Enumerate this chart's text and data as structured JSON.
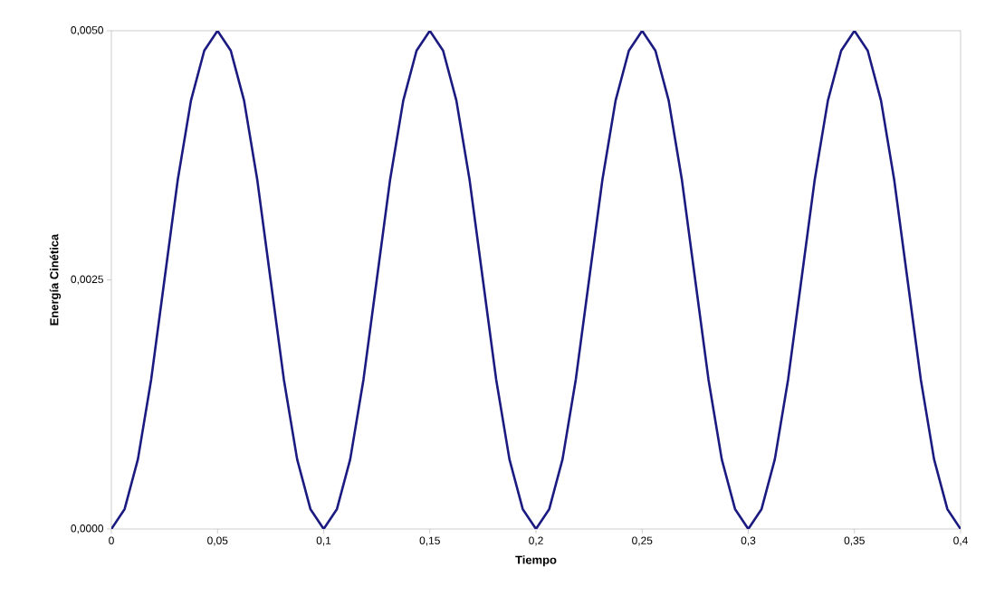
{
  "chart_data": {
    "type": "line",
    "xlabel": "Tiempo",
    "ylabel": "Energía Cinética",
    "x": [
      0,
      0.00625,
      0.0125,
      0.01875,
      0.025,
      0.03125,
      0.0375,
      0.04375,
      0.05,
      0.05625,
      0.0625,
      0.06875,
      0.075,
      0.08125,
      0.0875,
      0.09375,
      0.1,
      0.10625,
      0.1125,
      0.11875,
      0.125,
      0.13125,
      0.1375,
      0.14375,
      0.15,
      0.15625,
      0.1625,
      0.16875,
      0.175,
      0.18125,
      0.1875,
      0.19375,
      0.2,
      0.20625,
      0.2125,
      0.21875,
      0.225,
      0.23125,
      0.2375,
      0.24375,
      0.25,
      0.25625,
      0.2625,
      0.26875,
      0.275,
      0.28125,
      0.2875,
      0.29375,
      0.3,
      0.30625,
      0.3125,
      0.31875,
      0.325,
      0.33125,
      0.3375,
      0.34375,
      0.35,
      0.35625,
      0.3625,
      0.36875,
      0.375,
      0.38125,
      0.3875,
      0.39375,
      0.4
    ],
    "series": [
      {
        "color": "#1a1a80",
        "values": [
          0,
          0.0002,
          0.0007,
          0.0015,
          0.0025,
          0.0035,
          0.0043,
          0.0048,
          0.005,
          0.0048,
          0.0043,
          0.0035,
          0.0025,
          0.0015,
          0.0007,
          0.0002,
          0,
          0.0002,
          0.0007,
          0.0015,
          0.0025,
          0.0035,
          0.0043,
          0.0048,
          0.005,
          0.0048,
          0.0043,
          0.0035,
          0.0025,
          0.0015,
          0.0007,
          0.0002,
          0,
          0.0002,
          0.0007,
          0.0015,
          0.0025,
          0.0035,
          0.0043,
          0.0048,
          0.005,
          0.0048,
          0.0043,
          0.0035,
          0.0025,
          0.0015,
          0.0007,
          0.0002,
          0,
          0.0002,
          0.0007,
          0.0015,
          0.0025,
          0.0035,
          0.0043,
          0.0048,
          0.005,
          0.0048,
          0.0043,
          0.0035,
          0.0025,
          0.0015,
          0.0007,
          0.0002,
          0
        ]
      }
    ],
    "xlim": [
      0,
      0.4
    ],
    "ylim": [
      0,
      0.005
    ],
    "xticks": [
      0,
      {
        "value": 0.05,
        "label": "0,05"
      },
      {
        "value": 0.1,
        "label": "0,1"
      },
      {
        "value": 0.15,
        "label": "0,15"
      },
      {
        "value": 0.2,
        "label": "0,2"
      },
      {
        "value": 0.25,
        "label": "0,25"
      },
      {
        "value": 0.3,
        "label": "0,3"
      },
      {
        "value": 0.35,
        "label": "0,35"
      },
      {
        "value": 0.4,
        "label": "0,4"
      }
    ],
    "yticks": [
      {
        "value": 0,
        "label": "0,0000"
      },
      {
        "value": 0.0025,
        "label": "0,0025"
      },
      {
        "value": 0.005,
        "label": "0,0050"
      }
    ],
    "grid": false,
    "marker": "none",
    "line_style": "solid"
  }
}
